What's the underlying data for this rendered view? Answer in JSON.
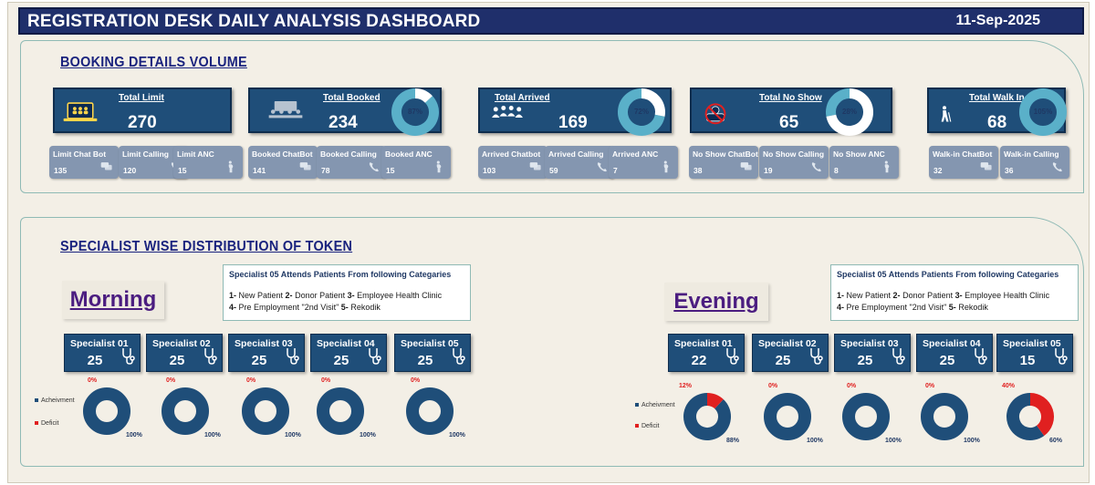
{
  "header": {
    "title": "REGISTRATION DESK DAILY ANALYSIS DASHBOARD",
    "date": "11-Sep-2025"
  },
  "booking": {
    "section_title": "BOOKING DETAILS VOLUME",
    "cards": [
      {
        "label": "Total Limit",
        "value": "270",
        "icon": "laptop-people-icon"
      },
      {
        "label": "Total Booked",
        "value": "234",
        "pct_label": "87%",
        "pct": 87,
        "icon": "meeting-icon"
      },
      {
        "label": "Total Arrived",
        "value": "169",
        "pct_label": "72%",
        "pct": 72,
        "icon": "people-group-icon"
      },
      {
        "label": "Total No Show",
        "value": "65",
        "pct_label": "28%",
        "pct": 28,
        "icon": "no-show-icon"
      },
      {
        "label": "Total Walk In",
        "value": "68",
        "pct_label": "105%",
        "pct": 100,
        "icon": "walking-person-icon"
      }
    ],
    "sub_cards": [
      [
        {
          "label": "Limit Chat Bot",
          "value": "135",
          "icon": "chat-icon"
        },
        {
          "label": "Limit Calling",
          "value": "120",
          "icon": "phone-icon"
        },
        {
          "label": "Limit ANC",
          "value": "15",
          "icon": "pregnant-icon"
        }
      ],
      [
        {
          "label": "Booked ChatBot",
          "value": "141",
          "icon": "chat-icon"
        },
        {
          "label": "Booked Calling",
          "value": "78",
          "icon": "phone-icon"
        },
        {
          "label": "Booked ANC",
          "value": "15",
          "icon": "pregnant-icon"
        }
      ],
      [
        {
          "label": "Arrived Chatbot",
          "value": "103",
          "icon": "chat-icon"
        },
        {
          "label": "Arrived Calling",
          "value": "59",
          "icon": "phone-icon"
        },
        {
          "label": "Arrived ANC",
          "value": "7",
          "icon": "pregnant-icon"
        }
      ],
      [
        {
          "label": "No Show ChatBot",
          "value": "38",
          "icon": "chat-icon"
        },
        {
          "label": "No Show Calling",
          "value": "19",
          "icon": "phone-icon"
        },
        {
          "label": "No Show ANC",
          "value": "8",
          "icon": "pregnant-icon"
        }
      ],
      [
        {
          "label": "Walk-in ChatBot",
          "value": "32",
          "icon": "chat-icon"
        },
        {
          "label": "Walk-in Calling",
          "value": "36",
          "icon": "phone-icon"
        }
      ]
    ]
  },
  "specialist": {
    "section_title": "SPECIALIST WISE DISTRIBUTION OF TOKEN",
    "note": {
      "title": "Specialist 05 Attends Patients From following Categaries",
      "line1": [
        "1-",
        " New Patient ",
        "2-",
        " Donor Patient ",
        "3-",
        " Employee Health Clinic"
      ],
      "line2": [
        "4-",
        " Pre Employment \"2nd Visit\" ",
        "5-",
        " Rekodik"
      ]
    },
    "legend": {
      "achievement": "Acheivment",
      "deficit": "Deficit"
    },
    "colors": {
      "achievement": "#1f4e79",
      "deficit": "#e02020"
    },
    "morning": {
      "label": "Morning",
      "specialists": [
        {
          "name": "Specialist 01",
          "value": "25"
        },
        {
          "name": "Specialist 02",
          "value": "25"
        },
        {
          "name": "Specialist 03",
          "value": "25"
        },
        {
          "name": "Specialist 04",
          "value": "25"
        },
        {
          "name": "Specialist 05",
          "value": "25"
        }
      ]
    },
    "evening": {
      "label": "Evening",
      "specialists": [
        {
          "name": "Specialist 01",
          "value": "22"
        },
        {
          "name": "Specialist 02",
          "value": "25"
        },
        {
          "name": "Specialist 03",
          "value": "25"
        },
        {
          "name": "Specialist 04",
          "value": "25"
        },
        {
          "name": "Specialist 05",
          "value": "15"
        }
      ]
    }
  },
  "chart_data": [
    {
      "type": "pie",
      "categories": [
        "Acheivment",
        "Deficit"
      ],
      "values": [
        87,
        13
      ],
      "labels": [
        "87%"
      ]
    },
    {
      "type": "pie",
      "categories": [
        "Acheivment",
        "Deficit"
      ],
      "values": [
        72,
        28
      ],
      "labels": [
        "72%"
      ]
    },
    {
      "type": "pie",
      "categories": [
        "Acheivment",
        "Deficit"
      ],
      "values": [
        28,
        72
      ],
      "labels": [
        "28%"
      ]
    },
    {
      "type": "pie",
      "categories": [
        "Acheivment",
        "Deficit"
      ],
      "values": [
        100,
        0
      ],
      "labels": [
        "105%"
      ]
    },
    {
      "type": "pie",
      "group": "Morning",
      "title": "Specialist 01",
      "categories": [
        "Acheivment",
        "Deficit"
      ],
      "values": [
        100,
        0
      ],
      "labels": [
        "100%",
        "0%"
      ]
    },
    {
      "type": "pie",
      "group": "Morning",
      "title": "Specialist 02",
      "categories": [
        "Acheivment",
        "Deficit"
      ],
      "values": [
        100,
        0
      ],
      "labels": [
        "100%",
        "0%"
      ]
    },
    {
      "type": "pie",
      "group": "Morning",
      "title": "Specialist 03",
      "categories": [
        "Acheivment",
        "Deficit"
      ],
      "values": [
        100,
        0
      ],
      "labels": [
        "100%",
        "0%"
      ]
    },
    {
      "type": "pie",
      "group": "Morning",
      "title": "Specialist 04",
      "categories": [
        "Acheivment",
        "Deficit"
      ],
      "values": [
        100,
        0
      ],
      "labels": [
        "100%",
        "0%"
      ]
    },
    {
      "type": "pie",
      "group": "Morning",
      "title": "Specialist 05",
      "categories": [
        "Acheivment",
        "Deficit"
      ],
      "values": [
        100,
        0
      ],
      "labels": [
        "100%",
        "0%"
      ]
    },
    {
      "type": "pie",
      "group": "Evening",
      "title": "Specialist 01",
      "categories": [
        "Acheivment",
        "Deficit"
      ],
      "values": [
        88,
        12
      ],
      "labels": [
        "88%",
        "12%"
      ]
    },
    {
      "type": "pie",
      "group": "Evening",
      "title": "Specialist 02",
      "categories": [
        "Acheivment",
        "Deficit"
      ],
      "values": [
        100,
        0
      ],
      "labels": [
        "100%",
        "0%"
      ]
    },
    {
      "type": "pie",
      "group": "Evening",
      "title": "Specialist 03",
      "categories": [
        "Acheivment",
        "Deficit"
      ],
      "values": [
        100,
        0
      ],
      "labels": [
        "100%",
        "0%"
      ]
    },
    {
      "type": "pie",
      "group": "Evening",
      "title": "Specialist 04",
      "categories": [
        "Acheivment",
        "Deficit"
      ],
      "values": [
        100,
        0
      ],
      "labels": [
        "100%",
        "0%"
      ]
    },
    {
      "type": "pie",
      "group": "Evening",
      "title": "Specialist 05",
      "categories": [
        "Acheivment",
        "Deficit"
      ],
      "values": [
        60,
        40
      ],
      "labels": [
        "60%",
        "40%"
      ]
    }
  ]
}
